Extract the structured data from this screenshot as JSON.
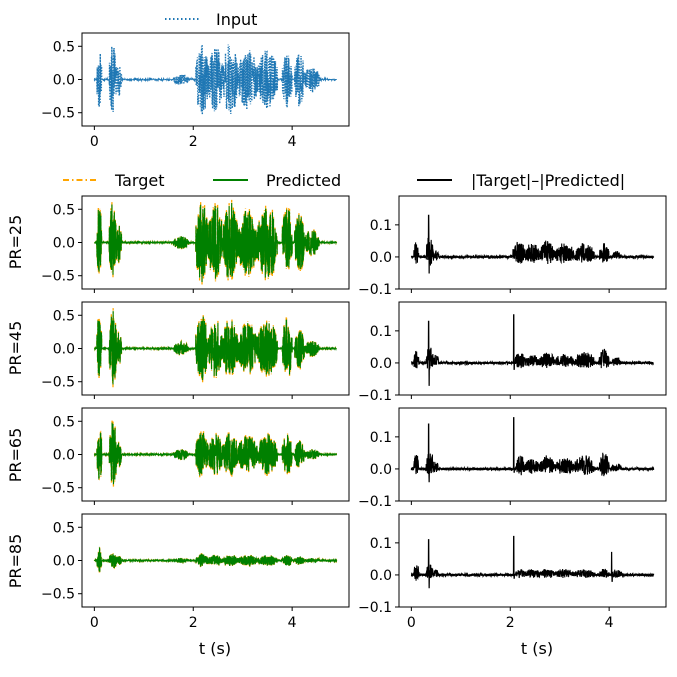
{
  "legend": {
    "input": "Input",
    "target": "Target",
    "predicted": "Predicted",
    "difference": "|Target|–|Predicted|"
  },
  "xlabel": "t (s)",
  "colors": {
    "input": "#1f77b4",
    "target": "#ffa500",
    "predicted": "#008000",
    "difference": "#000000"
  },
  "chart_data": [
    {
      "id": "input",
      "type": "line",
      "series": [
        {
          "name": "Input",
          "style": "dotted",
          "color": "#1f77b4"
        }
      ],
      "xlim": [
        -0.25,
        5.15
      ],
      "ylim": [
        -0.7,
        0.7
      ],
      "xticks": [
        0,
        2,
        4
      ],
      "yticks": [
        -0.5,
        0.0,
        0.5
      ],
      "ytick_labels": [
        "−0.5",
        "0.0",
        "0.5"
      ],
      "bursts": [
        [
          0.05,
          0.15,
          0.45
        ],
        [
          0.3,
          0.45,
          0.52
        ],
        [
          0.45,
          0.55,
          0.3
        ],
        [
          1.6,
          1.9,
          0.08
        ],
        [
          2.05,
          2.3,
          0.55
        ],
        [
          2.3,
          2.6,
          0.5
        ],
        [
          2.6,
          2.9,
          0.55
        ],
        [
          2.9,
          3.3,
          0.45
        ],
        [
          3.3,
          3.7,
          0.45
        ],
        [
          3.8,
          4.0,
          0.45
        ],
        [
          4.05,
          4.25,
          0.4
        ],
        [
          4.25,
          4.55,
          0.2
        ]
      ],
      "x_end": 4.9
    },
    {
      "id": "pr25-signal",
      "type": "line",
      "row_label": "PR=25",
      "series": [
        {
          "name": "Target",
          "color": "#ffa500"
        },
        {
          "name": "Predicted",
          "color": "#008000"
        }
      ],
      "xlim": [
        -0.25,
        5.15
      ],
      "ylim": [
        -0.7,
        0.7
      ],
      "xticks": [
        0,
        2,
        4
      ],
      "yticks": [
        -0.5,
        0.0,
        0.5
      ],
      "ytick_labels": [
        "−0.5",
        "0.0",
        "0.5"
      ],
      "bursts": [
        [
          0.05,
          0.15,
          0.55
        ],
        [
          0.3,
          0.45,
          0.6
        ],
        [
          0.45,
          0.55,
          0.3
        ],
        [
          1.6,
          1.9,
          0.1
        ],
        [
          2.05,
          2.3,
          0.6
        ],
        [
          2.3,
          2.6,
          0.55
        ],
        [
          2.6,
          2.9,
          0.6
        ],
        [
          2.9,
          3.3,
          0.5
        ],
        [
          3.3,
          3.7,
          0.55
        ],
        [
          3.8,
          4.0,
          0.55
        ],
        [
          4.05,
          4.25,
          0.45
        ],
        [
          4.25,
          4.55,
          0.2
        ]
      ],
      "x_end": 4.9
    },
    {
      "id": "pr25-diff",
      "type": "line",
      "series": [
        {
          "name": "|Target|–|Predicted|",
          "color": "#000000"
        }
      ],
      "xlim": [
        -0.25,
        5.15
      ],
      "ylim": [
        -0.1,
        0.19
      ],
      "xticks": [
        0,
        2,
        4
      ],
      "yticks": [
        -0.1,
        0.0,
        0.1
      ],
      "ytick_labels": [
        "−0.1",
        "0.0",
        "0.1"
      ],
      "spikes": [
        [
          0.35,
          0.13,
          -0.05
        ]
      ],
      "bursts": [
        [
          0.05,
          0.15,
          0.06
        ],
        [
          0.3,
          0.45,
          0.08
        ],
        [
          0.45,
          0.55,
          0.03
        ],
        [
          2.05,
          2.3,
          0.06
        ],
        [
          2.3,
          2.6,
          0.05
        ],
        [
          2.6,
          2.9,
          0.06
        ],
        [
          2.9,
          3.3,
          0.05
        ],
        [
          3.3,
          3.7,
          0.05
        ],
        [
          3.8,
          4.0,
          0.05
        ],
        [
          4.05,
          4.25,
          0.02
        ]
      ],
      "x_end": 4.9
    },
    {
      "id": "pr45-signal",
      "type": "line",
      "row_label": "PR=45",
      "series": [
        {
          "name": "Target",
          "color": "#ffa500"
        },
        {
          "name": "Predicted",
          "color": "#008000"
        }
      ],
      "xlim": [
        -0.25,
        5.15
      ],
      "ylim": [
        -0.7,
        0.7
      ],
      "xticks": [
        0,
        2,
        4
      ],
      "yticks": [
        -0.5,
        0.0,
        0.5
      ],
      "ytick_labels": [
        "−0.5",
        "0.0",
        "0.5"
      ],
      "bursts": [
        [
          0.05,
          0.15,
          0.52
        ],
        [
          0.3,
          0.45,
          0.58
        ],
        [
          0.45,
          0.55,
          0.25
        ],
        [
          1.6,
          1.9,
          0.1
        ],
        [
          2.05,
          2.3,
          0.5
        ],
        [
          2.3,
          2.6,
          0.42
        ],
        [
          2.6,
          2.9,
          0.45
        ],
        [
          2.9,
          3.3,
          0.38
        ],
        [
          3.3,
          3.7,
          0.42
        ],
        [
          3.8,
          4.0,
          0.45
        ],
        [
          4.05,
          4.25,
          0.3
        ],
        [
          4.25,
          4.55,
          0.12
        ]
      ],
      "x_end": 4.9
    },
    {
      "id": "pr45-diff",
      "type": "line",
      "series": [
        {
          "name": "|Target|–|Predicted|",
          "color": "#000000"
        }
      ],
      "xlim": [
        -0.25,
        5.15
      ],
      "ylim": [
        -0.1,
        0.19
      ],
      "xticks": [
        0,
        2,
        4
      ],
      "yticks": [
        -0.1,
        0.0,
        0.1
      ],
      "ytick_labels": [
        "−0.1",
        "0.0",
        "0.1"
      ],
      "spikes": [
        [
          0.35,
          0.13,
          -0.07
        ],
        [
          2.07,
          0.15,
          -0.02
        ]
      ],
      "bursts": [
        [
          0.05,
          0.15,
          0.05
        ],
        [
          0.3,
          0.45,
          0.06
        ],
        [
          0.45,
          0.55,
          0.03
        ],
        [
          2.1,
          2.3,
          0.04
        ],
        [
          2.3,
          2.6,
          0.03
        ],
        [
          2.6,
          2.9,
          0.04
        ],
        [
          2.9,
          3.3,
          0.03
        ],
        [
          3.3,
          3.7,
          0.04
        ],
        [
          3.8,
          4.0,
          0.05
        ],
        [
          4.05,
          4.25,
          0.02
        ]
      ],
      "x_end": 4.9
    },
    {
      "id": "pr65-signal",
      "type": "line",
      "row_label": "PR=65",
      "series": [
        {
          "name": "Target",
          "color": "#ffa500"
        },
        {
          "name": "Predicted",
          "color": "#008000"
        }
      ],
      "xlim": [
        -0.25,
        5.15
      ],
      "ylim": [
        -0.7,
        0.7
      ],
      "xticks": [
        0,
        2,
        4
      ],
      "yticks": [
        -0.5,
        0.0,
        0.5
      ],
      "ytick_labels": [
        "−0.5",
        "0.0",
        "0.5"
      ],
      "bursts": [
        [
          0.05,
          0.15,
          0.45
        ],
        [
          0.3,
          0.45,
          0.5
        ],
        [
          0.45,
          0.55,
          0.2
        ],
        [
          1.6,
          1.9,
          0.08
        ],
        [
          2.05,
          2.3,
          0.35
        ],
        [
          2.3,
          2.6,
          0.3
        ],
        [
          2.6,
          2.9,
          0.32
        ],
        [
          2.9,
          3.3,
          0.28
        ],
        [
          3.3,
          3.7,
          0.3
        ],
        [
          3.8,
          4.0,
          0.3
        ],
        [
          4.05,
          4.25,
          0.2
        ],
        [
          4.25,
          4.55,
          0.08
        ]
      ],
      "x_end": 4.9
    },
    {
      "id": "pr65-diff",
      "type": "line",
      "series": [
        {
          "name": "|Target|–|Predicted|",
          "color": "#000000"
        }
      ],
      "xlim": [
        -0.25,
        5.15
      ],
      "ylim": [
        -0.1,
        0.19
      ],
      "xticks": [
        0,
        2,
        4
      ],
      "yticks": [
        -0.1,
        0.0,
        0.1
      ],
      "ytick_labels": [
        "−0.1",
        "0.0",
        "0.1"
      ],
      "spikes": [
        [
          0.35,
          0.14,
          -0.04
        ],
        [
          2.07,
          0.16,
          -0.01
        ]
      ],
      "bursts": [
        [
          0.05,
          0.15,
          0.06
        ],
        [
          0.3,
          0.45,
          0.07
        ],
        [
          0.45,
          0.55,
          0.03
        ],
        [
          2.1,
          2.3,
          0.05
        ],
        [
          2.3,
          2.6,
          0.04
        ],
        [
          2.6,
          2.9,
          0.05
        ],
        [
          2.9,
          3.3,
          0.04
        ],
        [
          3.3,
          3.7,
          0.05
        ],
        [
          3.8,
          4.0,
          0.06
        ],
        [
          4.05,
          4.25,
          0.02
        ]
      ],
      "x_end": 4.9
    },
    {
      "id": "pr85-signal",
      "type": "line",
      "row_label": "PR=85",
      "series": [
        {
          "name": "Target",
          "color": "#ffa500"
        },
        {
          "name": "Predicted",
          "color": "#008000"
        }
      ],
      "xlim": [
        -0.25,
        5.15
      ],
      "ylim": [
        -0.7,
        0.7
      ],
      "xticks": [
        0,
        2,
        4
      ],
      "yticks": [
        -0.5,
        0.0,
        0.5
      ],
      "ytick_labels": [
        "−0.5",
        "0.0",
        "0.5"
      ],
      "bursts": [
        [
          0.05,
          0.15,
          0.18
        ],
        [
          0.3,
          0.45,
          0.12
        ],
        [
          0.45,
          0.55,
          0.08
        ],
        [
          1.6,
          1.9,
          0.04
        ],
        [
          2.05,
          2.3,
          0.1
        ],
        [
          2.3,
          2.6,
          0.08
        ],
        [
          2.6,
          2.9,
          0.09
        ],
        [
          2.9,
          3.3,
          0.08
        ],
        [
          3.3,
          3.7,
          0.08
        ],
        [
          3.8,
          4.0,
          0.08
        ],
        [
          4.05,
          4.25,
          0.06
        ],
        [
          4.25,
          4.55,
          0.03
        ]
      ],
      "x_end": 4.9
    },
    {
      "id": "pr85-diff",
      "type": "line",
      "series": [
        {
          "name": "|Target|–|Predicted|",
          "color": "#000000"
        }
      ],
      "xlim": [
        -0.25,
        5.15
      ],
      "ylim": [
        -0.1,
        0.19
      ],
      "xticks": [
        0,
        2,
        4
      ],
      "yticks": [
        -0.1,
        0.0,
        0.1
      ],
      "ytick_labels": [
        "−0.1",
        "0.0",
        "0.1"
      ],
      "spikes": [
        [
          0.35,
          0.11,
          -0.04
        ],
        [
          2.07,
          0.12,
          -0.01
        ],
        [
          4.05,
          0.07,
          -0.02
        ]
      ],
      "bursts": [
        [
          0.05,
          0.15,
          0.05
        ],
        [
          0.3,
          0.45,
          0.04
        ],
        [
          0.45,
          0.55,
          0.02
        ],
        [
          2.1,
          2.3,
          0.02
        ],
        [
          2.3,
          2.6,
          0.02
        ],
        [
          2.6,
          2.9,
          0.02
        ],
        [
          2.9,
          3.3,
          0.02
        ],
        [
          3.3,
          3.7,
          0.02
        ],
        [
          3.8,
          4.0,
          0.02
        ],
        [
          4.05,
          4.25,
          0.02
        ]
      ],
      "x_end": 4.9
    }
  ]
}
